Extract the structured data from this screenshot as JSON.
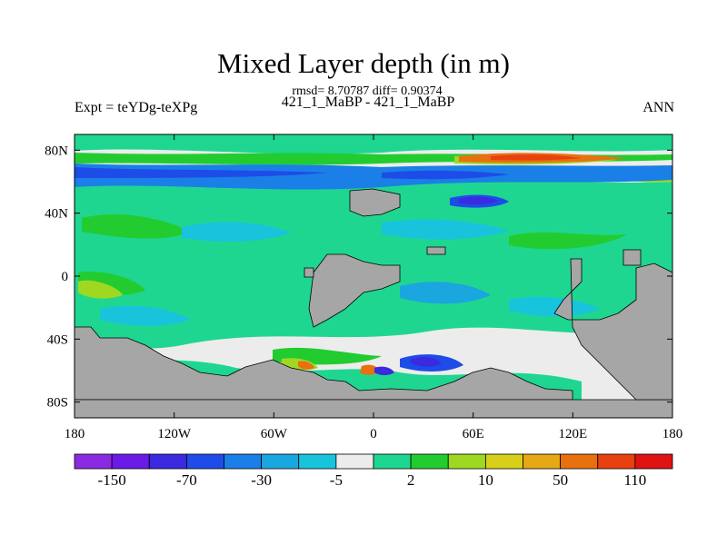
{
  "chart_data": {
    "type": "heatmap",
    "title": "Mixed Layer depth (in m)",
    "subtitle_stats": "rmsd= 8.70787 diff= 0.90374",
    "subtitle_runs": "421_1_MaBP - 421_1_MaBP",
    "left_label": "Expt = teYDg-teXPg",
    "right_label": "ANN",
    "x_ticks": [
      "180",
      "120W",
      "60W",
      "0",
      "60E",
      "120E",
      "180"
    ],
    "y_ticks": [
      "80N",
      "40N",
      "0",
      "40S",
      "80S"
    ],
    "x_range": [
      -180,
      180
    ],
    "y_range": [
      -90,
      90
    ],
    "colorbar": {
      "labels": [
        "-150",
        "-70",
        "-30",
        "-5",
        "2",
        "10",
        "50",
        "110"
      ],
      "colors": [
        "#8a2be2",
        "#6a1ce6",
        "#3a2ae0",
        "#1e4ce8",
        "#1a7fe6",
        "#1aa6de",
        "#18c4dc",
        "#ececec",
        "#1fd690",
        "#22cc30",
        "#9ed820",
        "#d8d018",
        "#e6a814",
        "#e8700f",
        "#e8400e",
        "#e01212"
      ]
    },
    "land_color": "#a6a6a6",
    "neutral_color": "#ececec"
  }
}
